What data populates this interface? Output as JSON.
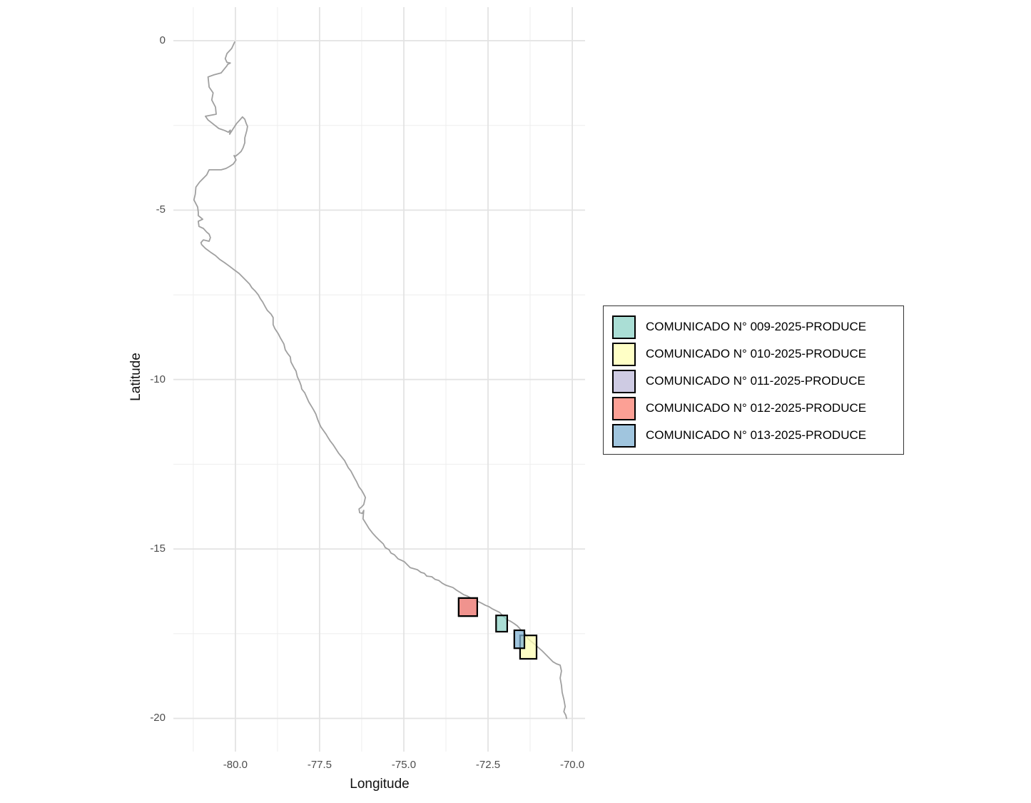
{
  "figure": {
    "xlabel": "Longitude",
    "ylabel": "Latitude"
  },
  "legend": {
    "items": [
      {
        "label": "COMUNICADO N° 009-2025-PRODUCE",
        "color": "#8DD3C7"
      },
      {
        "label": "COMUNICADO N° 010-2025-PRODUCE",
        "color": "#FFFFB3"
      },
      {
        "label": "COMUNICADO N° 011-2025-PRODUCE",
        "color": "#BEBADA"
      },
      {
        "label": "COMUNICADO N° 012-2025-PRODUCE",
        "color": "#FB8072"
      },
      {
        "label": "COMUNICADO N° 013-2025-PRODUCE",
        "color": "#80B1D3"
      }
    ],
    "fill_opacity": 0.75
  },
  "style": {
    "grid_major_color": "#e3e3e3",
    "grid_minor_color": "#eeeeee",
    "coast_color": "#a0a0a0",
    "zone_border_color": "#000000",
    "tick_label_color": "#4d4d4d"
  },
  "chart_data": {
    "type": "map",
    "title": "",
    "xlabel": "Longitude",
    "ylabel": "Latitude",
    "xlim": [
      -81.84,
      -69.62
    ],
    "ylim": [
      -20.98,
      0.99
    ],
    "x_ticks": [
      {
        "value": -80.0,
        "label": "-80.0"
      },
      {
        "value": -77.5,
        "label": "-77.5"
      },
      {
        "value": -75.0,
        "label": "-75.0"
      },
      {
        "value": -72.5,
        "label": "-72.5"
      },
      {
        "value": -70.0,
        "label": "-70.0"
      }
    ],
    "y_ticks": [
      {
        "value": 0,
        "label": "0"
      },
      {
        "value": -5,
        "label": "-5"
      },
      {
        "value": -10,
        "label": "-10"
      },
      {
        "value": -15,
        "label": "-15"
      },
      {
        "value": -20,
        "label": "-20"
      }
    ],
    "x_minor": [
      -81.25,
      -78.75,
      -76.25,
      -73.75,
      -71.25
    ],
    "y_minor": [
      -2.5,
      -7.5,
      -12.5,
      -17.5
    ],
    "zones": [
      {
        "name": "COMUNICADO N° 009-2025-PRODUCE",
        "lon": [
          -72.26,
          -71.93
        ],
        "lat": [
          -17.44,
          -16.96
        ],
        "color": "#8DD3C7"
      },
      {
        "name": "COMUNICADO N° 010-2025-PRODUCE",
        "lon": [
          -71.55,
          -71.06
        ],
        "lat": [
          -18.24,
          -17.55
        ],
        "color": "#FFFFB3"
      },
      {
        "name": "COMUNICADO N° 011-2025-PRODUCE",
        "lon": [
          -73.37,
          -72.82
        ],
        "lat": [
          -16.98,
          -16.45
        ],
        "color": "#BEBADA"
      },
      {
        "name": "COMUNICADO N° 012-2025-PRODUCE",
        "lon": [
          -73.37,
          -72.82
        ],
        "lat": [
          -16.98,
          -16.45
        ],
        "color": "#FB8072"
      },
      {
        "name": "COMUNICADO N° 013-2025-PRODUCE",
        "lon": [
          -71.72,
          -71.42
        ],
        "lat": [
          -17.93,
          -17.4
        ],
        "color": "#80B1D3"
      }
    ],
    "coastline": [
      [
        -80.02,
        -0.04
      ],
      [
        -80.11,
        -0.23
      ],
      [
        -80.25,
        -0.38
      ],
      [
        -80.3,
        -0.53
      ],
      [
        -80.25,
        -0.64
      ],
      [
        -80.15,
        -0.66
      ],
      [
        -80.23,
        -0.7
      ],
      [
        -80.25,
        -0.74
      ],
      [
        -80.42,
        -0.95
      ],
      [
        -80.64,
        -1.01
      ],
      [
        -80.81,
        -1.07
      ],
      [
        -80.78,
        -1.37
      ],
      [
        -80.66,
        -1.54
      ],
      [
        -80.7,
        -1.75
      ],
      [
        -80.59,
        -1.96
      ],
      [
        -80.57,
        -2.17
      ],
      [
        -80.89,
        -2.23
      ],
      [
        -80.81,
        -2.34
      ],
      [
        -80.49,
        -2.59
      ],
      [
        -80.32,
        -2.65
      ],
      [
        -80.21,
        -2.7
      ],
      [
        -80.15,
        -2.64
      ],
      [
        -80.17,
        -2.76
      ],
      [
        -80.06,
        -2.59
      ],
      [
        -79.96,
        -2.44
      ],
      [
        -79.85,
        -2.32
      ],
      [
        -79.79,
        -2.25
      ],
      [
        -79.72,
        -2.32
      ],
      [
        -79.68,
        -2.44
      ],
      [
        -79.64,
        -2.53
      ],
      [
        -79.66,
        -2.65
      ],
      [
        -79.72,
        -2.87
      ],
      [
        -79.72,
        -3.01
      ],
      [
        -79.77,
        -3.16
      ],
      [
        -79.83,
        -3.27
      ],
      [
        -79.92,
        -3.35
      ],
      [
        -80.0,
        -3.41
      ],
      [
        -80.04,
        -3.39
      ],
      [
        -79.98,
        -3.52
      ],
      [
        -80.06,
        -3.64
      ],
      [
        -80.17,
        -3.71
      ],
      [
        -80.28,
        -3.77
      ],
      [
        -80.42,
        -3.81
      ],
      [
        -80.78,
        -3.81
      ],
      [
        -80.85,
        -3.96
      ],
      [
        -81.06,
        -4.17
      ],
      [
        -81.17,
        -4.32
      ],
      [
        -81.19,
        -4.53
      ],
      [
        -81.23,
        -4.7
      ],
      [
        -81.12,
        -4.91
      ],
      [
        -81.1,
        -5.06
      ],
      [
        -81.1,
        -5.16
      ],
      [
        -80.97,
        -5.27
      ],
      [
        -81.1,
        -5.33
      ],
      [
        -81.08,
        -5.48
      ],
      [
        -80.95,
        -5.54
      ],
      [
        -80.85,
        -5.65
      ],
      [
        -80.78,
        -5.71
      ],
      [
        -80.74,
        -5.81
      ],
      [
        -80.78,
        -5.92
      ],
      [
        -80.95,
        -5.88
      ],
      [
        -81.02,
        -5.96
      ],
      [
        -81.0,
        -6.02
      ],
      [
        -80.89,
        -6.13
      ],
      [
        -80.74,
        -6.24
      ],
      [
        -80.59,
        -6.34
      ],
      [
        -80.47,
        -6.45
      ],
      [
        -80.32,
        -6.55
      ],
      [
        -80.17,
        -6.66
      ],
      [
        -80.04,
        -6.76
      ],
      [
        -79.89,
        -6.87
      ],
      [
        -79.79,
        -6.97
      ],
      [
        -79.68,
        -7.08
      ],
      [
        -79.58,
        -7.18
      ],
      [
        -79.51,
        -7.29
      ],
      [
        -79.41,
        -7.39
      ],
      [
        -79.32,
        -7.5
      ],
      [
        -79.26,
        -7.61
      ],
      [
        -79.19,
        -7.71
      ],
      [
        -79.11,
        -7.86
      ],
      [
        -79.05,
        -7.96
      ],
      [
        -78.94,
        -8.07
      ],
      [
        -78.88,
        -8.17
      ],
      [
        -78.88,
        -8.38
      ],
      [
        -78.83,
        -8.49
      ],
      [
        -78.73,
        -8.64
      ],
      [
        -78.67,
        -8.76
      ],
      [
        -78.56,
        -8.95
      ],
      [
        -78.52,
        -9.12
      ],
      [
        -78.45,
        -9.23
      ],
      [
        -78.37,
        -9.33
      ],
      [
        -78.35,
        -9.48
      ],
      [
        -78.26,
        -9.65
      ],
      [
        -78.2,
        -9.75
      ],
      [
        -78.16,
        -9.92
      ],
      [
        -78.09,
        -10.07
      ],
      [
        -78.05,
        -10.18
      ],
      [
        -78.03,
        -10.28
      ],
      [
        -77.94,
        -10.39
      ],
      [
        -77.88,
        -10.53
      ],
      [
        -77.82,
        -10.66
      ],
      [
        -77.73,
        -10.81
      ],
      [
        -77.67,
        -10.91
      ],
      [
        -77.61,
        -11.02
      ],
      [
        -77.56,
        -11.17
      ],
      [
        -77.52,
        -11.27
      ],
      [
        -77.46,
        -11.4
      ],
      [
        -77.39,
        -11.5
      ],
      [
        -77.31,
        -11.61
      ],
      [
        -77.25,
        -11.71
      ],
      [
        -77.18,
        -11.82
      ],
      [
        -77.1,
        -11.92
      ],
      [
        -76.93,
        -12.18
      ],
      [
        -76.76,
        -12.39
      ],
      [
        -76.65,
        -12.6
      ],
      [
        -76.57,
        -12.7
      ],
      [
        -76.46,
        -12.91
      ],
      [
        -76.4,
        -13.02
      ],
      [
        -76.33,
        -13.17
      ],
      [
        -76.25,
        -13.27
      ],
      [
        -76.19,
        -13.38
      ],
      [
        -76.14,
        -13.48
      ],
      [
        -76.19,
        -13.69
      ],
      [
        -76.25,
        -13.76
      ],
      [
        -76.33,
        -13.82
      ],
      [
        -76.31,
        -13.93
      ],
      [
        -76.23,
        -13.95
      ],
      [
        -76.19,
        -13.86
      ],
      [
        -76.21,
        -14.11
      ],
      [
        -76.14,
        -14.22
      ],
      [
        -76.08,
        -14.32
      ],
      [
        -76.04,
        -14.39
      ],
      [
        -75.93,
        -14.53
      ],
      [
        -75.83,
        -14.64
      ],
      [
        -75.72,
        -14.75
      ],
      [
        -75.61,
        -14.85
      ],
      [
        -75.55,
        -14.96
      ],
      [
        -75.44,
        -15.02
      ],
      [
        -75.38,
        -15.12
      ],
      [
        -75.28,
        -15.17
      ],
      [
        -75.17,
        -15.29
      ],
      [
        -75.06,
        -15.34
      ],
      [
        -74.98,
        -15.38
      ],
      [
        -74.92,
        -15.44
      ],
      [
        -74.81,
        -15.55
      ],
      [
        -74.6,
        -15.61
      ],
      [
        -74.49,
        -15.69
      ],
      [
        -74.39,
        -15.72
      ],
      [
        -74.32,
        -15.8
      ],
      [
        -74.17,
        -15.82
      ],
      [
        -74.07,
        -15.9
      ],
      [
        -73.96,
        -15.93
      ],
      [
        -73.86,
        -16.01
      ],
      [
        -73.75,
        -16.07
      ],
      [
        -73.54,
        -16.14
      ],
      [
        -73.43,
        -16.22
      ],
      [
        -73.33,
        -16.28
      ],
      [
        -73.22,
        -16.35
      ],
      [
        -73.11,
        -16.39
      ],
      [
        -73.01,
        -16.45
      ],
      [
        -72.9,
        -16.49
      ],
      [
        -72.82,
        -16.54
      ],
      [
        -72.69,
        -16.6
      ],
      [
        -72.58,
        -16.66
      ],
      [
        -72.48,
        -16.7
      ],
      [
        -72.37,
        -16.77
      ],
      [
        -72.16,
        -16.87
      ],
      [
        -71.95,
        -17.08
      ],
      [
        -71.84,
        -17.13
      ],
      [
        -71.74,
        -17.19
      ],
      [
        -71.63,
        -17.27
      ],
      [
        -71.53,
        -17.38
      ],
      [
        -71.42,
        -17.48
      ],
      [
        -71.31,
        -17.65
      ],
      [
        -71.06,
        -17.86
      ],
      [
        -70.89,
        -18.01
      ],
      [
        -70.78,
        -18.12
      ],
      [
        -70.68,
        -18.22
      ],
      [
        -70.57,
        -18.33
      ],
      [
        -70.47,
        -18.39
      ],
      [
        -70.36,
        -18.43
      ],
      [
        -70.32,
        -18.6
      ],
      [
        -70.36,
        -18.81
      ],
      [
        -70.32,
        -19.02
      ],
      [
        -70.3,
        -19.23
      ],
      [
        -70.25,
        -19.44
      ],
      [
        -70.21,
        -19.65
      ],
      [
        -70.25,
        -19.8
      ],
      [
        -70.19,
        -19.91
      ],
      [
        -70.17,
        -20.0
      ]
    ]
  }
}
